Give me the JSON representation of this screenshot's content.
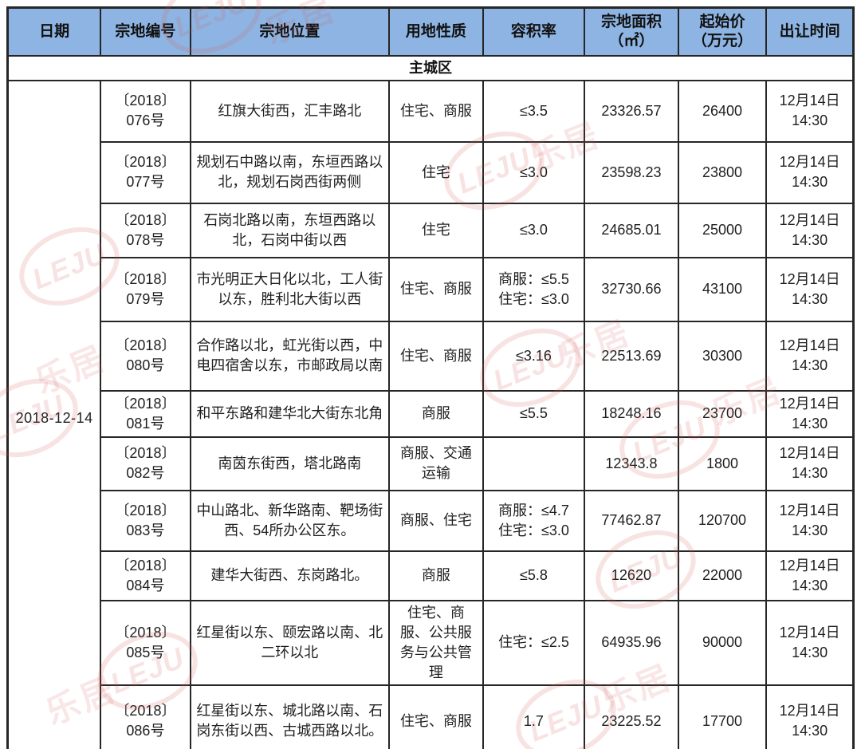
{
  "colors": {
    "header_bg": "#8DB4E2",
    "section_bg": "#FFFF00",
    "border": "#262626",
    "watermark": "#D95A5A"
  },
  "header": {
    "columns": [
      "日期",
      "宗地编号",
      "宗地位置",
      "用地性质",
      "容积率",
      "宗地面积\n（㎡）",
      "起始价\n（万元）",
      "出让时间"
    ]
  },
  "section": {
    "label": "主城区"
  },
  "date_cell": {
    "value": "2018-12-14"
  },
  "watermark": {
    "logo_text": "LEJU",
    "brand_text": "乐居"
  },
  "rows": [
    {
      "no": "〔2018〕\n076号",
      "location": "红旗大街西，汇丰路北",
      "use": "住宅、商服",
      "far": "≤3.5",
      "area": "23326.57",
      "price": "26400",
      "time": "12月14日\n14:30"
    },
    {
      "no": "〔2018〕\n077号",
      "location": "规划石中路以南，东垣西路以北，规划石岗西街两侧",
      "use": "住宅",
      "far": "≤3.0",
      "area": "23598.23",
      "price": "23800",
      "time": "12月14日\n14:30"
    },
    {
      "no": "〔2018〕\n078号",
      "location": "石岗北路以南，东垣西路以北，石岗中街以西",
      "use": "住宅",
      "far": "≤3.0",
      "area": "24685.01",
      "price": "25000",
      "time": "12月14日\n14:30"
    },
    {
      "no": "〔2018〕\n079号",
      "location": "市光明正大日化以北，工人街以东，胜利北大街以西",
      "use": "住宅、商服",
      "far": "商服：≤5.5\n住宅：≤3.0",
      "area": "32730.66",
      "price": "43100",
      "time": "12月14日\n14:30"
    },
    {
      "no": "〔2018〕\n080号",
      "location": "合作路以北，虹光街以西，中电四宿舍以东，市邮政局以南",
      "use": "住宅、商服",
      "far": "≤3.16",
      "area": "22513.69",
      "price": "30300",
      "time": "12月14日\n14:30"
    },
    {
      "no": "〔2018〕\n081号",
      "location": "和平东路和建华北大街东北角",
      "use": "商服",
      "far": "≤5.5",
      "area": "18248.16",
      "price": "23700",
      "time": "12月14日\n14:30"
    },
    {
      "no": "〔2018〕\n082号",
      "location": "南茵东街西，塔北路南",
      "use": "商服、交通运输",
      "far": "",
      "area": "12343.8",
      "price": "1800",
      "time": "12月14日\n14:30"
    },
    {
      "no": "〔2018〕\n083号",
      "location": "中山路北、新华路南、靶场街西、54所办公区东。",
      "use": "商服、住宅",
      "far": "商服：≤4.7\n住宅：≤3.0",
      "area": "77462.87",
      "price": "120700",
      "time": "12月14日\n14:30"
    },
    {
      "no": "〔2018〕\n084号",
      "location": "建华大街西、东岗路北。",
      "use": "商服",
      "far": "≤5.8",
      "area": "12620",
      "price": "22000",
      "time": "12月14日\n14:30"
    },
    {
      "no": "〔2018〕\n085号",
      "location": "红星街以东、颐宏路以南、北二环以北",
      "use": "住宅、商服、公共服务与公共管理",
      "far": "住宅：≤2.5",
      "area": "64935.96",
      "price": "90000",
      "time": "12月14日\n14:30"
    },
    {
      "no": "〔2018〕\n086号",
      "location": "红星街以东、城北路以南、石岗东街以西、古城西路以北。",
      "use": "住宅、商服",
      "far": "1.7",
      "area": "23225.52",
      "price": "17700",
      "time": "12月14日\n14:30"
    }
  ]
}
